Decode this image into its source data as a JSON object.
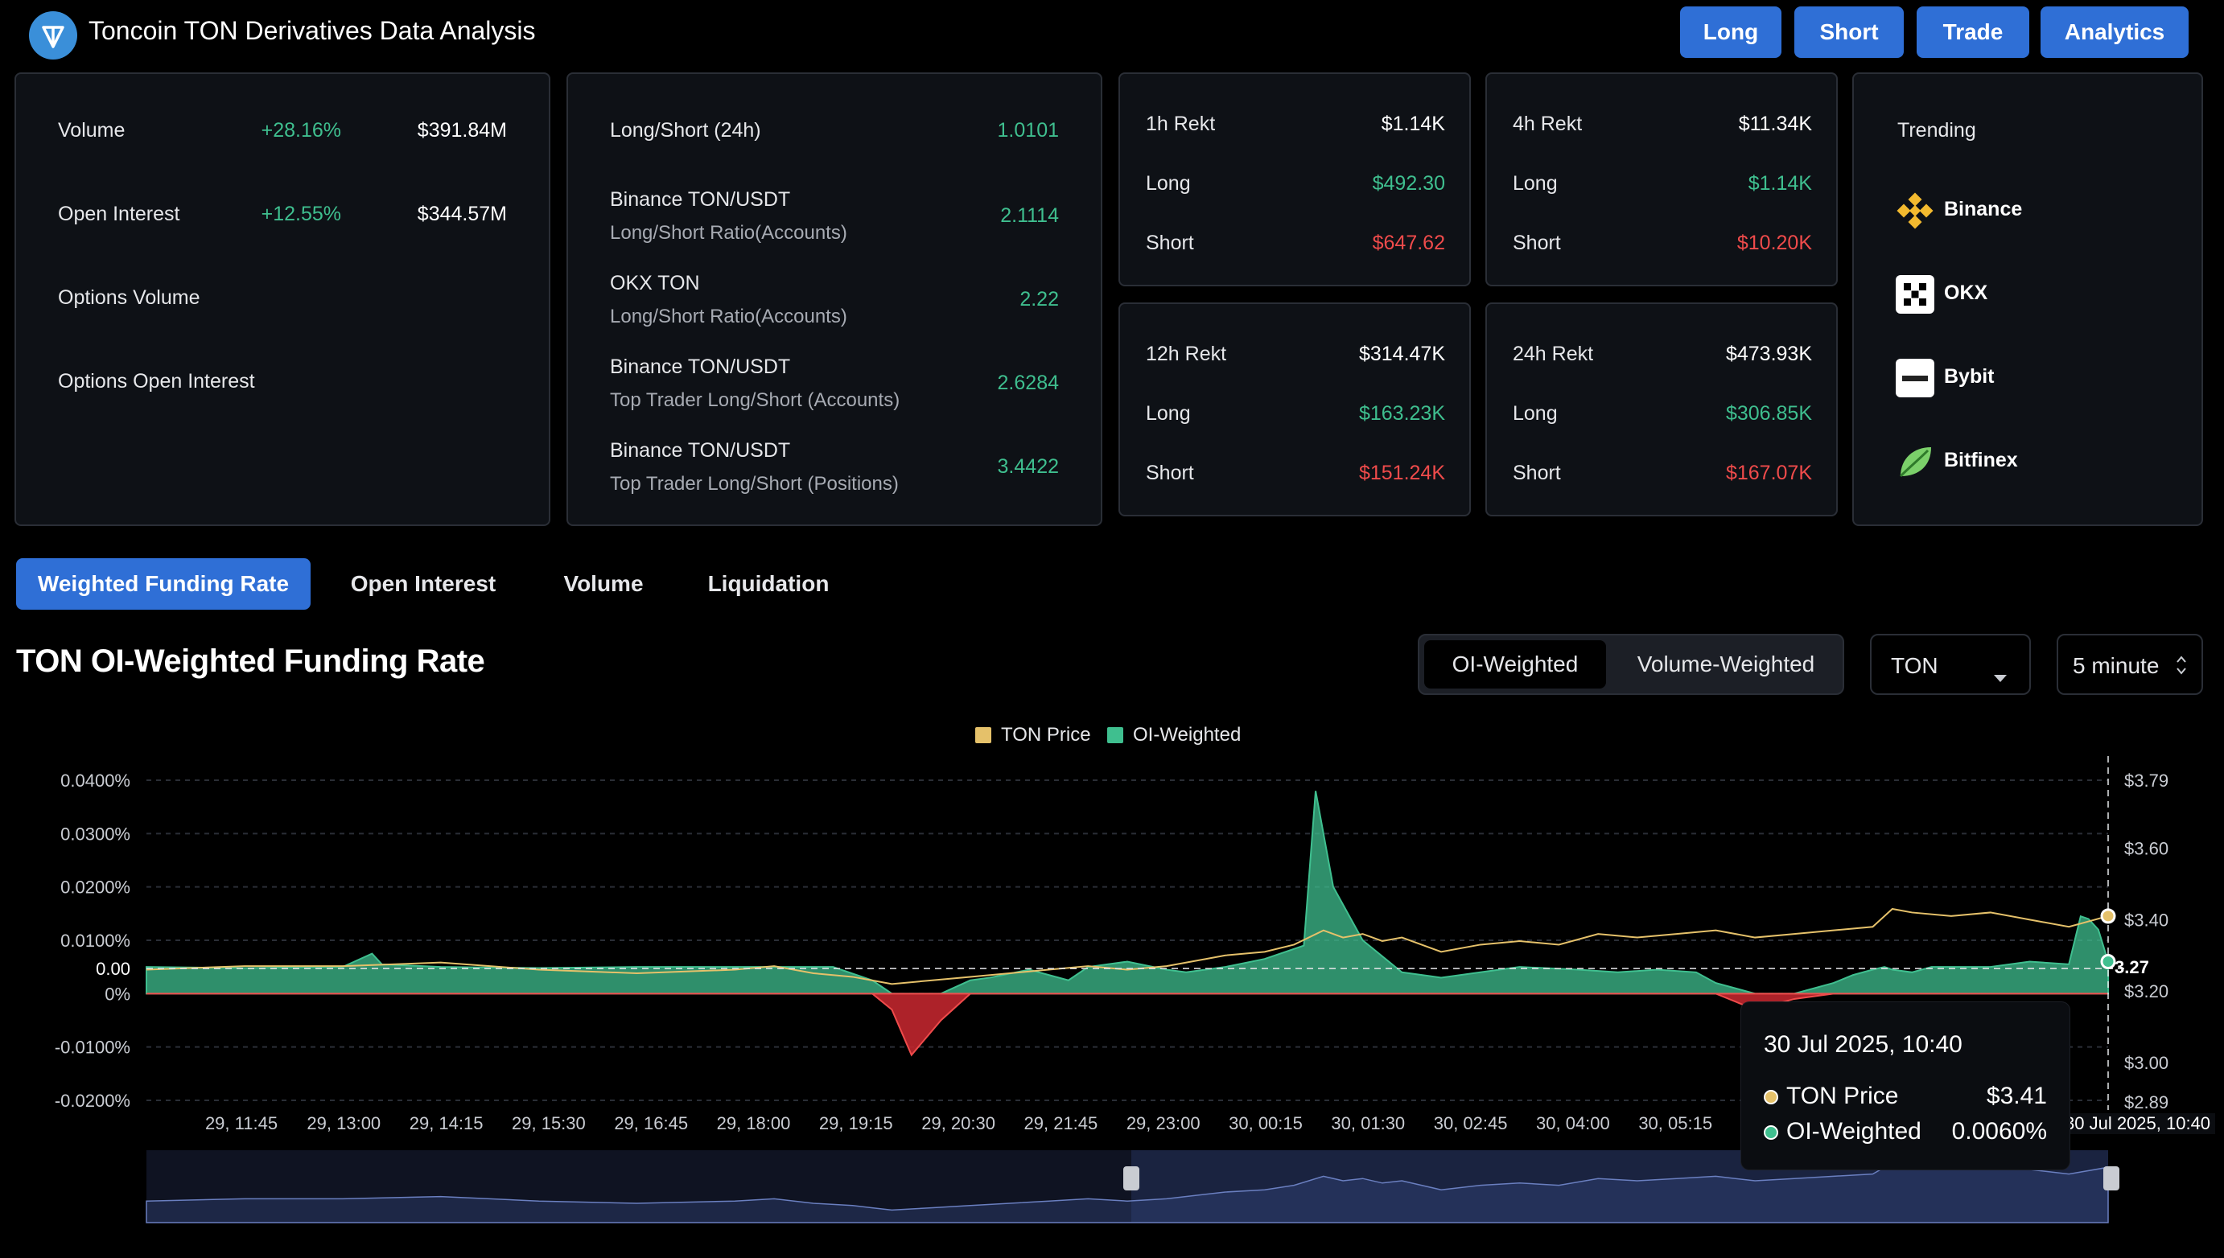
{
  "header": {
    "title": "Toncoin TON Derivatives Data Analysis",
    "buttons": [
      "Long",
      "Short",
      "Trade",
      "Analytics"
    ]
  },
  "overview": [
    {
      "label": "Volume",
      "change": "+28.16%",
      "value": "$391.84M"
    },
    {
      "label": "Open Interest",
      "change": "+12.55%",
      "value": "$344.57M"
    },
    {
      "label": "Options Volume",
      "change": "",
      "value": ""
    },
    {
      "label": "Options Open Interest",
      "change": "",
      "value": ""
    }
  ],
  "ratios": [
    {
      "label": "Long/Short (24h)",
      "sub": "",
      "value": "1.0101"
    },
    {
      "label": "Binance TON/USDT",
      "sub": "Long/Short Ratio(Accounts)",
      "value": "2.1114"
    },
    {
      "label": "OKX TON",
      "sub": "Long/Short Ratio(Accounts)",
      "value": "2.22"
    },
    {
      "label": "Binance TON/USDT",
      "sub": "Top Trader Long/Short (Accounts)",
      "value": "2.6284"
    },
    {
      "label": "Binance TON/USDT",
      "sub": "Top Trader Long/Short (Positions)",
      "value": "3.4422"
    }
  ],
  "rekt": [
    {
      "label": "1h Rekt",
      "total": "$1.14K",
      "long_label": "Long",
      "long": "$492.30",
      "short_label": "Short",
      "short": "$647.62"
    },
    {
      "label": "4h Rekt",
      "total": "$11.34K",
      "long_label": "Long",
      "long": "$1.14K",
      "short_label": "Short",
      "short": "$10.20K"
    },
    {
      "label": "12h Rekt",
      "total": "$314.47K",
      "long_label": "Long",
      "long": "$163.23K",
      "short_label": "Short",
      "short": "$151.24K"
    },
    {
      "label": "24h Rekt",
      "total": "$473.93K",
      "long_label": "Long",
      "long": "$306.85K",
      "short_label": "Short",
      "short": "$167.07K"
    }
  ],
  "trending": {
    "title": "Trending",
    "items": [
      {
        "name": "Binance",
        "icon": "binance-icon",
        "color": "#f3ba2f"
      },
      {
        "name": "OKX",
        "icon": "okx-icon",
        "color": "#ffffff"
      },
      {
        "name": "Bybit",
        "icon": "bybit-icon",
        "color": "#ffffff"
      },
      {
        "name": "Bitfinex",
        "icon": "bitfinex-icon",
        "color": "#7bd06a"
      }
    ]
  },
  "tabs": [
    "Weighted Funding Rate",
    "Open Interest",
    "Volume",
    "Liquidation"
  ],
  "chart_title": "TON OI-Weighted Funding Rate",
  "weighting": [
    "OI-Weighted",
    "Volume-Weighted"
  ],
  "coin_select": "TON",
  "interval_select": "5 minute",
  "legend": [
    "TON Price",
    "OI-Weighted"
  ],
  "tooltip": {
    "time": "30 Jul 2025, 10:40",
    "price_label": "TON Price",
    "price": "$3.41",
    "oi_label": "OI-Weighted",
    "oi": "0.0060%"
  },
  "crosshair": {
    "y_value": "3.27",
    "x_value": "30 Jul 2025, 10:40"
  },
  "colors": {
    "accent": "#2f6fd6",
    "positive": "#3fbf8f",
    "negative": "#ef4b4b",
    "price": "#e5c16a"
  },
  "chart_data": {
    "type": "area",
    "xlabel": "",
    "ylabel": "",
    "x_ticks": [
      "29, 11:45",
      "29, 13:00",
      "29, 14:15",
      "29, 15:30",
      "29, 16:45",
      "29, 18:00",
      "29, 19:15",
      "29, 20:30",
      "29, 21:45",
      "29, 23:00",
      "30, 00:15",
      "30, 01:30",
      "30, 02:45",
      "30, 04:00",
      "30, 05:15",
      "30"
    ],
    "y_left_ticks": [
      "0.0400%",
      "0.0300%",
      "0.0200%",
      "0.0100%",
      "0.00",
      "0%",
      "-0.0100%",
      "-0.0200%"
    ],
    "y_right_ticks": [
      "$3.79",
      "$3.60",
      "$3.40",
      "$3.20",
      "$3.00",
      "$2.89"
    ],
    "ylim_left": [
      -0.02,
      0.04
    ],
    "ylim_right": [
      2.89,
      3.79
    ],
    "x_range": [
      0,
      100
    ],
    "series": [
      {
        "name": "OI-Weighted",
        "x": [
          0,
          5,
          10,
          11.5,
          12,
          15,
          20,
          25,
          30,
          35,
          37,
          38,
          39,
          40.5,
          42,
          43,
          45,
          47,
          48,
          50,
          52,
          53,
          55,
          57,
          59,
          59.6,
          60,
          60.5,
          62,
          64,
          66,
          68,
          70,
          73,
          75,
          77,
          79,
          80,
          82,
          84,
          86,
          87,
          88,
          88.6,
          89,
          90,
          91,
          92,
          94,
          96,
          98,
          98.6,
          99,
          99.5,
          100
        ],
        "values": [
          0.005,
          0.0048,
          0.005,
          0.0075,
          0.0055,
          0.005,
          0.0048,
          0.005,
          0.005,
          0.005,
          0.0025,
          -0.003,
          -0.0115,
          -0.005,
          0.0025,
          0.003,
          0.0045,
          0.0025,
          0.005,
          0.006,
          0.0045,
          0.004,
          0.005,
          0.0065,
          0.009,
          0.038,
          0.03,
          0.02,
          0.01,
          0.004,
          0.003,
          0.004,
          0.005,
          0.0045,
          0.004,
          0.0045,
          0.004,
          0.002,
          -0.003,
          -0.001,
          0.002,
          0.0035,
          0.0045,
          0.005,
          0.0045,
          0.004,
          0.005,
          0.005,
          0.005,
          0.006,
          0.0055,
          0.0145,
          0.014,
          0.012,
          0.006
        ]
      },
      {
        "name": "TON Price",
        "x": [
          0,
          5,
          10,
          15,
          20,
          25,
          30,
          32,
          34,
          36,
          37,
          38,
          40,
          42,
          44,
          46,
          48,
          50,
          52,
          54,
          55,
          57,
          58.5,
          60,
          61,
          62,
          63,
          64,
          66,
          68,
          70,
          72,
          74,
          76,
          78,
          80,
          82,
          84,
          86,
          88,
          89,
          90,
          92,
          94,
          96,
          98,
          100
        ],
        "values": [
          3.26,
          3.27,
          3.27,
          3.28,
          3.26,
          3.25,
          3.26,
          3.27,
          3.25,
          3.24,
          3.23,
          3.22,
          3.23,
          3.24,
          3.25,
          3.26,
          3.27,
          3.26,
          3.27,
          3.29,
          3.3,
          3.31,
          3.33,
          3.37,
          3.35,
          3.36,
          3.34,
          3.35,
          3.31,
          3.33,
          3.34,
          3.33,
          3.36,
          3.35,
          3.36,
          3.37,
          3.35,
          3.36,
          3.37,
          3.38,
          3.43,
          3.42,
          3.41,
          3.42,
          3.4,
          3.38,
          3.41
        ]
      }
    ]
  }
}
